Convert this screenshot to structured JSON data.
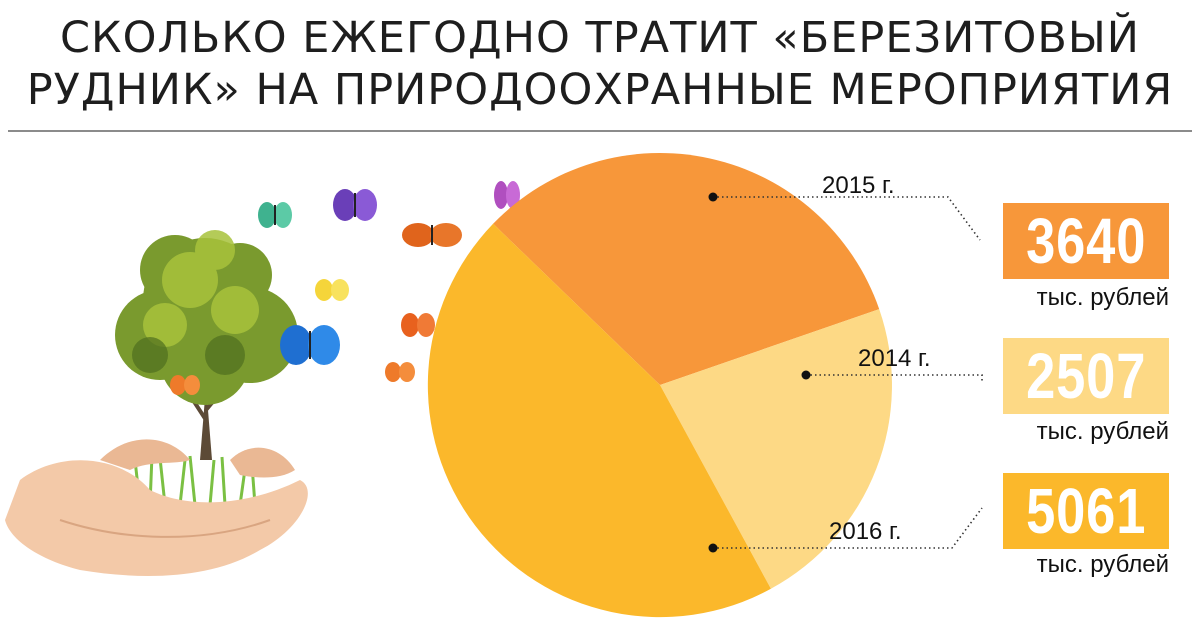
{
  "title": {
    "line1": "СКОЛЬКО ЕЖЕГОДНО ТРАТИТ «БЕРЕЗИТОВЫЙ",
    "line2": "РУДНИК» НА ПРИРОДООХРАННЫЕ МЕРОПРИЯТИЯ"
  },
  "chart_data": {
    "type": "pie",
    "unit": "тыс. рублей",
    "slices": [
      {
        "label": "2015 г.",
        "value": 3640,
        "value_text": "3640",
        "color": "#f7973a"
      },
      {
        "label": "2014 г.",
        "value": 2507,
        "value_text": "2507",
        "color": "#fdd985"
      },
      {
        "label": "2016 г.",
        "value": 5061,
        "value_text": "5061",
        "color": "#fbb82b"
      }
    ]
  },
  "colors": {
    "rule": "#8b8b8b",
    "text": "#1e1e1e"
  }
}
